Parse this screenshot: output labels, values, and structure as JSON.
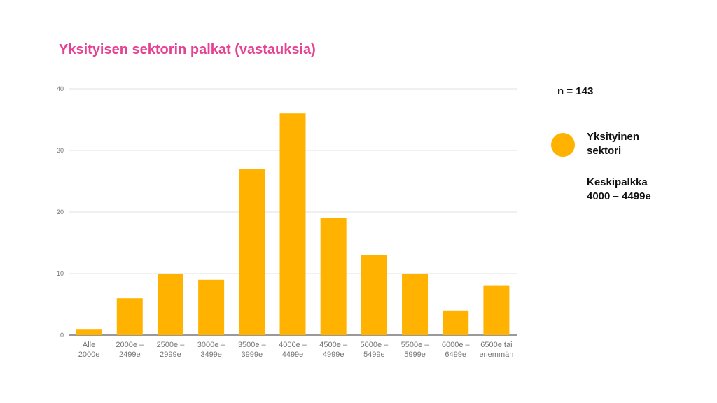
{
  "colors": {
    "title": "#e64293",
    "bar": "#ffb300",
    "grid": "#e0e0e0",
    "axis": "#757575"
  },
  "sample": {
    "n_label": "n = 143"
  },
  "legend": {
    "line1": "Yksityinen",
    "line2": "sektori"
  },
  "note": {
    "line1": "Keskipalkka",
    "line2": "4000 – 4499e"
  },
  "chart_data": {
    "type": "bar",
    "title": "Yksityisen sektorin palkat (vastauksia)",
    "xlabel": "",
    "ylabel": "",
    "ylim": [
      0,
      40
    ],
    "yticks": [
      0,
      10,
      20,
      30,
      40
    ],
    "grid": true,
    "legend_position": "right",
    "categories": [
      [
        "Alle",
        "2000e"
      ],
      [
        "2000e –",
        "2499e"
      ],
      [
        "2500e –",
        "2999e"
      ],
      [
        "3000e –",
        "3499e"
      ],
      [
        "3500e –",
        "3999e"
      ],
      [
        "4000e –",
        "4499e"
      ],
      [
        "4500e –",
        "4999e"
      ],
      [
        "5000e –",
        "5499e"
      ],
      [
        "5500e –",
        "5999e"
      ],
      [
        "6000e –",
        "6499e"
      ],
      [
        "6500e tai",
        "enemmän"
      ]
    ],
    "series": [
      {
        "name": "Yksityinen sektori",
        "values": [
          1,
          6,
          10,
          9,
          27,
          36,
          19,
          13,
          10,
          4,
          8
        ]
      }
    ]
  }
}
